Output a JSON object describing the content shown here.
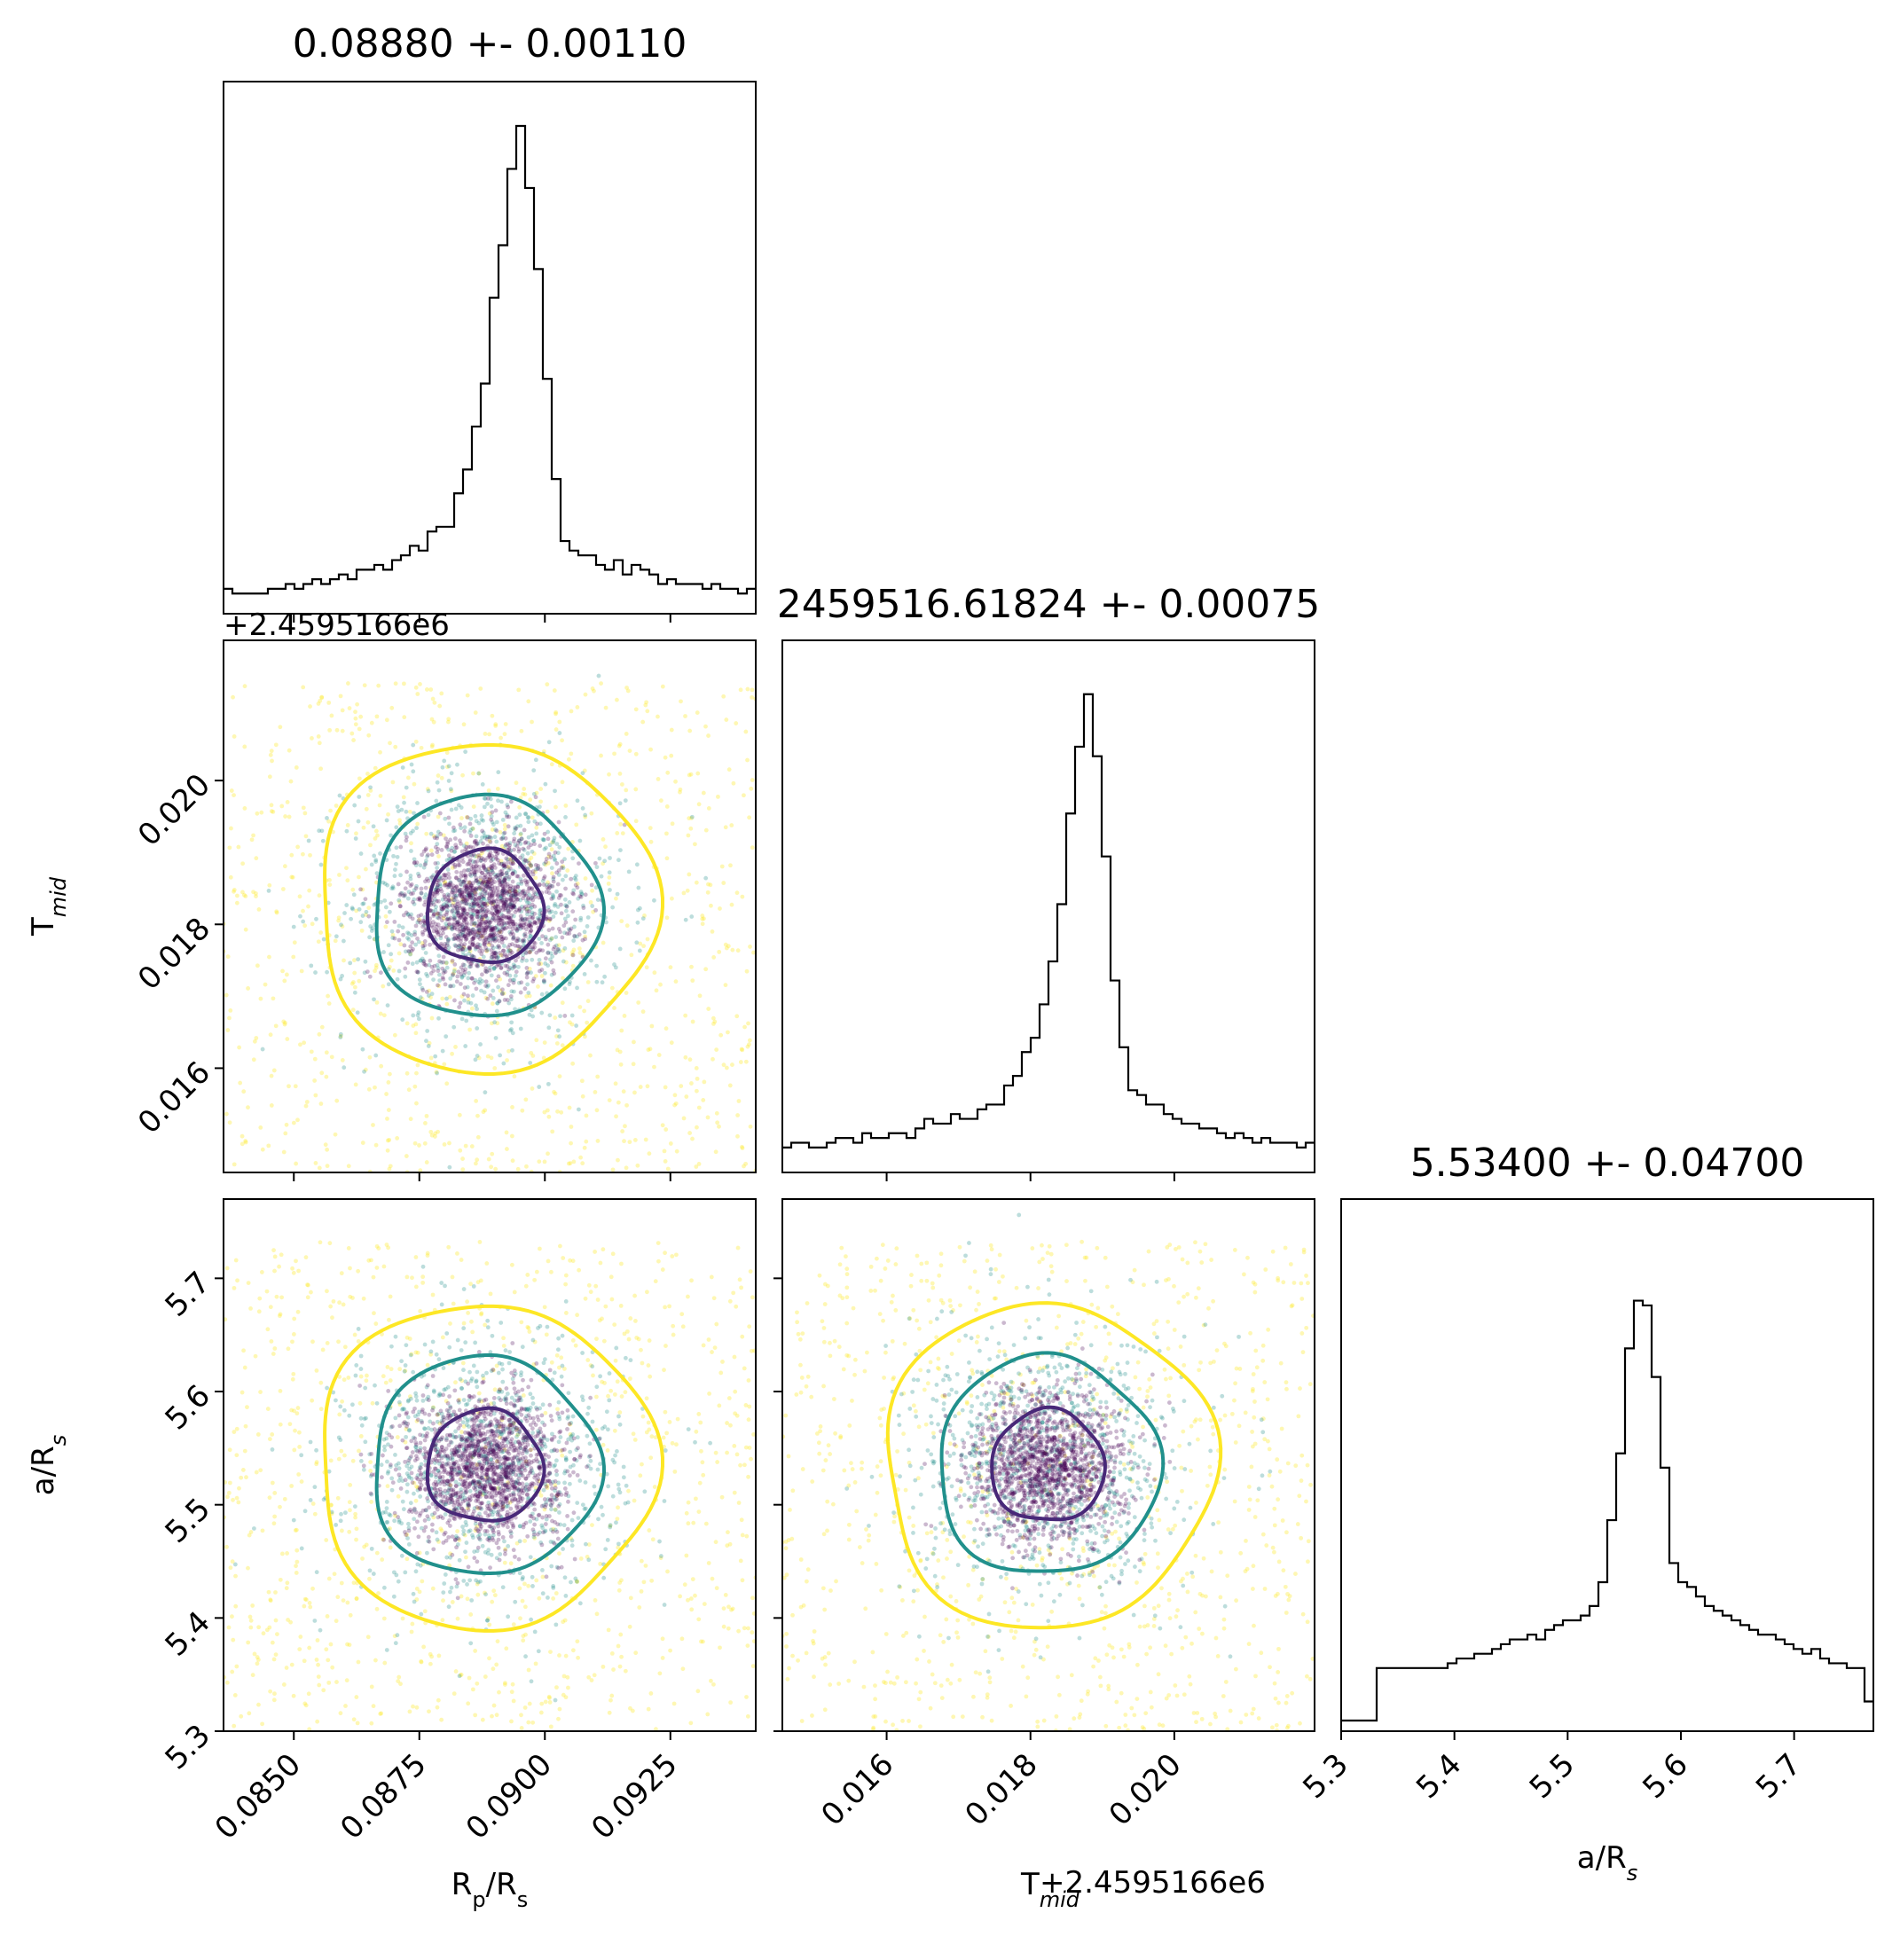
{
  "figure": {
    "titles": {
      "rp": "0.08880 +- 0.00110",
      "tmid": "2459516.61824 +- 0.00075",
      "ars": "5.53400 +- 0.04700"
    },
    "axis_labels": {
      "rp_main": "R",
      "rp_sub1": "p",
      "rp_mid": "/R",
      "rp_sub2": "s",
      "tmid_main": "T",
      "tmid_sub": "mid",
      "ars_main": "a/R",
      "ars_sub": "s"
    },
    "offset_text": "+2.4595166e6",
    "colors": {
      "hist": "#000000",
      "contour_1sigma": "#482878",
      "contour_2sigma": "#21908c",
      "contour_3sigma": "#fde725",
      "points_inner": "#440154",
      "points_mid": "#21908c",
      "points_outer": "#fde725"
    }
  },
  "chart_data": {
    "type": "corner",
    "parameters": [
      {
        "key": "rp",
        "median": 0.0888,
        "sigma": 0.0011,
        "range": [
          0.0836,
          0.0942
        ],
        "ticks": [
          0.085,
          0.0875,
          0.09,
          0.0925
        ],
        "tick_labels": [
          "0.0850",
          "0.0875",
          "0.0900",
          "0.0925"
        ]
      },
      {
        "key": "tmid",
        "median": 0.01824,
        "sigma": 0.00075,
        "offset": 2459516.6,
        "range": [
          0.01455,
          0.02195
        ],
        "ticks": [
          0.016,
          0.018,
          0.02
        ],
        "tick_labels": [
          "0.016",
          "0.018",
          "0.020"
        ]
      },
      {
        "key": "ars",
        "median": 5.534,
        "sigma": 0.047,
        "range": [
          5.3,
          5.77
        ],
        "ticks": [
          5.3,
          5.4,
          5.5,
          5.6,
          5.7
        ],
        "tick_labels": [
          "5.3",
          "5.4",
          "5.5",
          "5.6",
          "5.7"
        ]
      }
    ],
    "histograms": {
      "rp": [
        0.03,
        0.02,
        0.02,
        0.02,
        0.02,
        0.03,
        0.03,
        0.04,
        0.03,
        0.04,
        0.05,
        0.04,
        0.05,
        0.06,
        0.05,
        0.07,
        0.07,
        0.08,
        0.07,
        0.09,
        0.1,
        0.12,
        0.11,
        0.15,
        0.16,
        0.16,
        0.23,
        0.28,
        0.37,
        0.46,
        0.64,
        0.75,
        0.91,
        1.0,
        0.87,
        0.7,
        0.47,
        0.26,
        0.13,
        0.11,
        0.1,
        0.1,
        0.08,
        0.07,
        0.09,
        0.06,
        0.08,
        0.07,
        0.06,
        0.04,
        0.05,
        0.04,
        0.04,
        0.04,
        0.03,
        0.04,
        0.03,
        0.03,
        0.02,
        0.03
      ],
      "tmid": [
        0.03,
        0.04,
        0.04,
        0.03,
        0.03,
        0.04,
        0.05,
        0.05,
        0.04,
        0.06,
        0.05,
        0.05,
        0.06,
        0.06,
        0.05,
        0.07,
        0.09,
        0.08,
        0.08,
        0.1,
        0.09,
        0.09,
        0.11,
        0.12,
        0.12,
        0.16,
        0.18,
        0.23,
        0.26,
        0.33,
        0.42,
        0.54,
        0.73,
        0.87,
        0.98,
        0.85,
        0.64,
        0.38,
        0.24,
        0.15,
        0.14,
        0.12,
        0.12,
        0.1,
        0.09,
        0.08,
        0.08,
        0.07,
        0.07,
        0.06,
        0.05,
        0.06,
        0.05,
        0.04,
        0.05,
        0.04,
        0.04,
        0.04,
        0.03,
        0.04
      ],
      "ars": [
        0.0,
        0.0,
        0.0,
        0.0,
        0.11,
        0.11,
        0.11,
        0.11,
        0.11,
        0.11,
        0.11,
        0.11,
        0.12,
        0.13,
        0.13,
        0.14,
        0.14,
        0.15,
        0.16,
        0.17,
        0.17,
        0.18,
        0.17,
        0.19,
        0.2,
        0.21,
        0.21,
        0.22,
        0.24,
        0.29,
        0.42,
        0.56,
        0.78,
        0.88,
        0.87,
        0.72,
        0.53,
        0.33,
        0.29,
        0.28,
        0.26,
        0.24,
        0.23,
        0.22,
        0.21,
        0.2,
        0.19,
        0.18,
        0.18,
        0.17,
        0.16,
        0.15,
        0.14,
        0.15,
        0.13,
        0.12,
        0.12,
        0.11,
        0.11,
        0.04
      ]
    },
    "contours_sigma_levels": [
      1,
      2,
      3
    ],
    "grid": false
  }
}
